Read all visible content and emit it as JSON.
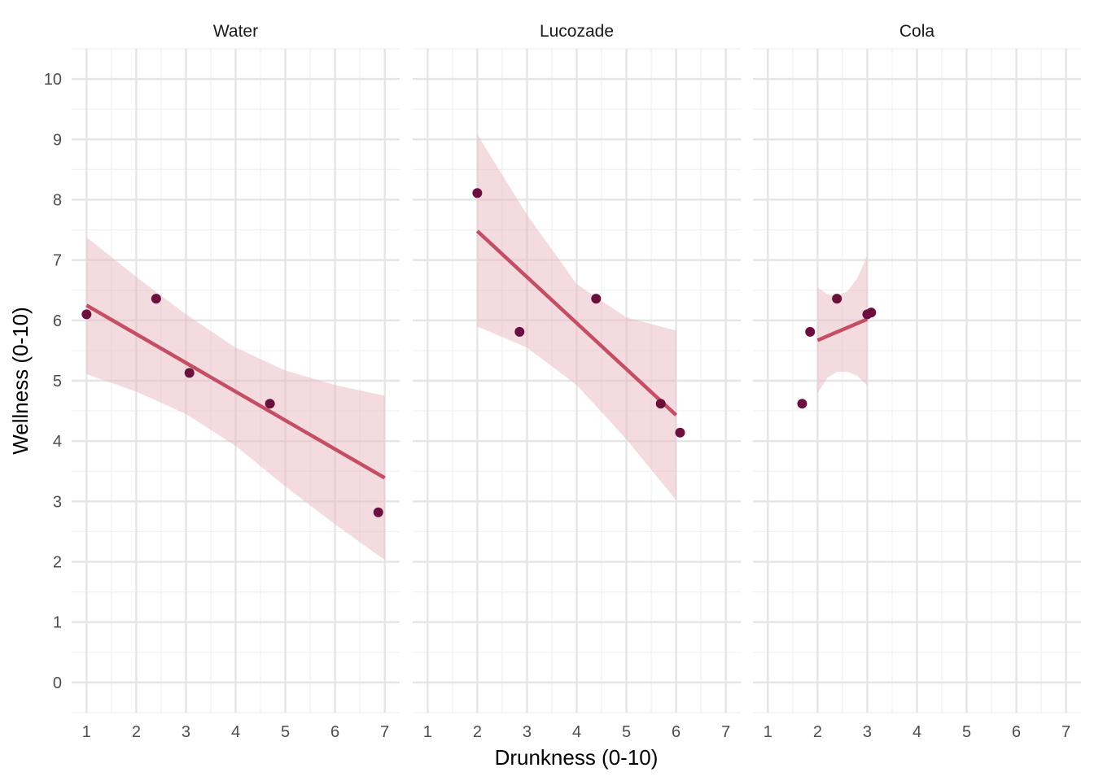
{
  "chart_data": {
    "type": "scatter",
    "subtype": "faceted scatter with linear regression fit and confidence band",
    "xlabel": "Drunkness (0-10)",
    "ylabel": "Wellness (0-10)",
    "xlim": [
      0.7,
      7.3
    ],
    "ylim": [
      -0.5,
      10.5
    ],
    "x_ticks": [
      1,
      2,
      3,
      4,
      5,
      6,
      7
    ],
    "y_ticks": [
      0,
      1,
      2,
      3,
      4,
      5,
      6,
      7,
      8,
      9,
      10
    ],
    "grid": true,
    "minor_grid": true,
    "legend": "none",
    "colors": {
      "point": "#6b0f3f",
      "fit_line": "#c44e63",
      "band": "#e8b7c0",
      "grid_major": "#e5e5e5",
      "grid_minor": "#f0f0f0"
    },
    "facets": [
      {
        "name": "Water",
        "points": [
          {
            "x": 1.0,
            "y": 6.1
          },
          {
            "x": 2.4,
            "y": 6.36
          },
          {
            "x": 3.07,
            "y": 5.13
          },
          {
            "x": 4.69,
            "y": 4.62
          },
          {
            "x": 6.87,
            "y": 2.82
          }
        ],
        "fit": {
          "x": [
            1.0,
            7.0
          ],
          "y": [
            6.25,
            3.39
          ]
        },
        "band": [
          {
            "x": 1.0,
            "lo": 5.11,
            "hi": 7.38
          },
          {
            "x": 2.0,
            "lo": 4.82,
            "hi": 6.72
          },
          {
            "x": 3.0,
            "lo": 4.45,
            "hi": 6.1
          },
          {
            "x": 4.0,
            "lo": 3.92,
            "hi": 5.55
          },
          {
            "x": 5.0,
            "lo": 3.25,
            "hi": 5.17
          },
          {
            "x": 6.0,
            "lo": 2.62,
            "hi": 4.93
          },
          {
            "x": 7.0,
            "lo": 2.03,
            "hi": 4.75
          }
        ]
      },
      {
        "name": "Lucozade",
        "points": [
          {
            "x": 2.0,
            "y": 8.11
          },
          {
            "x": 2.85,
            "y": 5.81
          },
          {
            "x": 4.39,
            "y": 6.36
          },
          {
            "x": 5.69,
            "y": 4.62
          },
          {
            "x": 6.08,
            "y": 4.14
          }
        ],
        "fit": {
          "x": [
            2.0,
            6.0
          ],
          "y": [
            7.48,
            4.43
          ]
        },
        "band": [
          {
            "x": 2.0,
            "lo": 5.9,
            "hi": 9.08
          },
          {
            "x": 3.0,
            "lo": 5.55,
            "hi": 7.75
          },
          {
            "x": 4.0,
            "lo": 4.93,
            "hi": 6.6
          },
          {
            "x": 5.0,
            "lo": 4.03,
            "hi": 6.05
          },
          {
            "x": 6.0,
            "lo": 3.02,
            "hi": 5.83
          }
        ]
      },
      {
        "name": "Cola",
        "points": [
          {
            "x": 1.69,
            "y": 4.62
          },
          {
            "x": 1.85,
            "y": 5.81
          },
          {
            "x": 2.39,
            "y": 6.36
          },
          {
            "x": 3.0,
            "y": 6.1
          },
          {
            "x": 3.08,
            "y": 6.13
          }
        ],
        "fit": {
          "x": [
            2.0,
            3.0
          ],
          "y": [
            5.67,
            6.02
          ]
        },
        "band": [
          {
            "x": 2.0,
            "lo": 4.8,
            "hi": 6.55
          },
          {
            "x": 2.2,
            "lo": 5.05,
            "hi": 6.43
          },
          {
            "x": 2.4,
            "lo": 5.15,
            "hi": 6.4
          },
          {
            "x": 2.6,
            "lo": 5.15,
            "hi": 6.48
          },
          {
            "x": 2.8,
            "lo": 5.08,
            "hi": 6.7
          },
          {
            "x": 3.0,
            "lo": 4.92,
            "hi": 7.07
          }
        ]
      }
    ]
  }
}
